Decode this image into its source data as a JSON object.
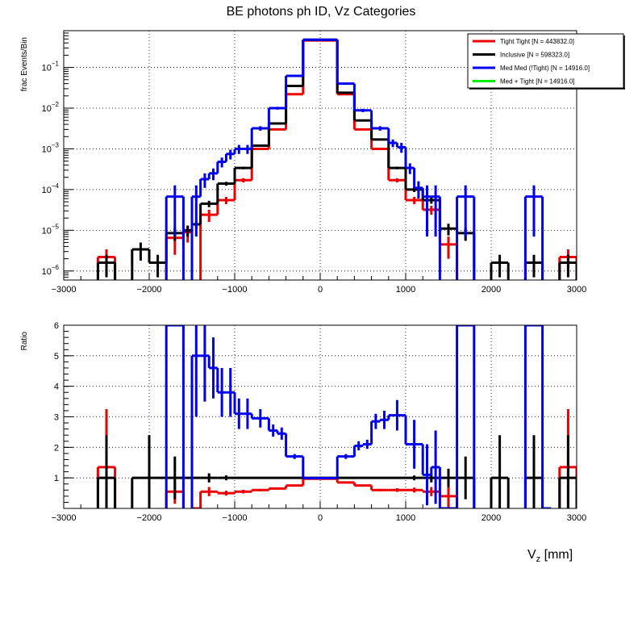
{
  "title": "BE photons ph ID, Vz Categories",
  "xlabel_main": "V",
  "xlabel_sub": "z",
  "xlabel_unit": " [mm]",
  "colors": {
    "tight_tight": "#ee0000",
    "inclusive": "#000000",
    "med_med": "#0000ee",
    "med_tight": "#00ee00"
  },
  "chart_data": [
    {
      "type": "line",
      "panel": "top",
      "ylabel": "frac Events/Bin",
      "yscale": "log",
      "xlim": [
        -3000,
        3000
      ],
      "ylim": [
        6e-07,
        0.8
      ],
      "yticks": [
        {
          "v": 1e-06,
          "label": "10^-6"
        },
        {
          "v": 1e-05,
          "label": "10^-5"
        },
        {
          "v": 0.0001,
          "label": "10^-4"
        },
        {
          "v": 0.001,
          "label": "10^-3"
        },
        {
          "v": 0.01,
          "label": "10^-2"
        },
        {
          "v": 0.1,
          "label": "10^-1"
        }
      ],
      "xticks": [
        -3000,
        -2000,
        -1000,
        0,
        1000,
        2000,
        3000
      ],
      "xtick_labels": [
        "−3000",
        "−2000",
        "−1000",
        "0",
        "1000",
        "2000",
        "3000"
      ],
      "legend": {
        "placement": "top-right",
        "entries": [
          {
            "label": "Tight Tight [N = 443832.0]",
            "color": "#ee0000"
          },
          {
            "label": "Inclusive [N = 598323.0]",
            "color": "#000000"
          },
          {
            "label": "Med Med (!Tight) [N = 14916.0]",
            "color": "#0000ee"
          },
          {
            "label": "Med + Tight [N = 14916.0]",
            "color": "#00ee00"
          }
        ]
      },
      "series": [
        {
          "name": "Tight Tight",
          "color": "#ee0000",
          "bins": [
            [
              -2600,
              -2400,
              2.2e-06,
              1.2e-06
            ],
            [
              -1800,
              -1600,
              6.5e-06,
              4e-06
            ],
            [
              -1600,
              -1500,
              9e-06,
              4e-06
            ],
            [
              -1400,
              -1200,
              2.4e-05,
              8e-06
            ],
            [
              -1200,
              -1000,
              5.5e-05,
              1.1e-05
            ],
            [
              -1000,
              -800,
              0.00017,
              2e-05
            ],
            [
              -800,
              -600,
              0.001,
              5e-05
            ],
            [
              -600,
              -400,
              0.003,
              0.0001
            ],
            [
              -400,
              -200,
              0.022,
              0.0003
            ],
            [
              -200,
              200,
              0.46,
              0.001
            ],
            [
              200,
              400,
              0.022,
              0.0003
            ],
            [
              400,
              600,
              0.003,
              0.0001
            ],
            [
              600,
              800,
              0.001,
              5e-05
            ],
            [
              800,
              1000,
              0.00017,
              2e-05
            ],
            [
              1000,
              1200,
              5.5e-05,
              1.1e-05
            ],
            [
              1200,
              1400,
              3.2e-05,
              8e-06
            ],
            [
              1400,
              1600,
              4.5e-06,
              2.5e-06
            ],
            [
              2800,
              3000,
              2.2e-06,
              1.2e-06
            ]
          ]
        },
        {
          "name": "Inclusive",
          "color": "#000000",
          "bins": [
            [
              -2600,
              -2400,
              1.6e-06,
              9e-07
            ],
            [
              -2200,
              -2000,
              3.4e-06,
              1.6e-06
            ],
            [
              -2000,
              -1800,
              1.6e-06,
              9e-07
            ],
            [
              -1800,
              -1600,
              8.5e-06,
              3e-06
            ],
            [
              -1600,
              -1500,
              1e-05,
              3e-06
            ],
            [
              -1500,
              -1400,
              1.4e-05,
              3e-06
            ],
            [
              -1400,
              -1200,
              4.5e-05,
              8e-06
            ],
            [
              -1200,
              -1000,
              0.00014,
              1.5e-05
            ],
            [
              -1000,
              -800,
              0.00034,
              2.5e-05
            ],
            [
              -800,
              -600,
              0.0012,
              6e-05
            ],
            [
              -600,
              -400,
              0.0042,
              0.00012
            ],
            [
              -400,
              -200,
              0.035,
              0.0003
            ],
            [
              -200,
              200,
              0.48,
              0.001
            ],
            [
              200,
              400,
              0.024,
              0.0003
            ],
            [
              400,
              600,
              0.005,
              0.00012
            ],
            [
              600,
              800,
              0.0017,
              6e-05
            ],
            [
              800,
              1000,
              0.00034,
              2.5e-05
            ],
            [
              1000,
              1200,
              0.0001,
              1.3e-05
            ],
            [
              1200,
              1400,
              5.5e-05,
              1e-05
            ],
            [
              1400,
              1600,
              1.1e-05,
              3.5e-06
            ],
            [
              1600,
              1800,
              8.5e-06,
              3e-06
            ],
            [
              2000,
              2200,
              1.6e-06,
              9e-07
            ],
            [
              2400,
              2600,
              1.6e-06,
              9e-07
            ],
            [
              2800,
              3000,
              1.6e-06,
              9e-07
            ]
          ]
        },
        {
          "name": "Med Med (!Tight)",
          "color": "#0000ee",
          "bins": [
            [
              -1800,
              -1600,
              6.7e-05,
              6e-05
            ],
            [
              -1500,
              -1400,
              6.7e-05,
              6e-05
            ],
            [
              -1400,
              -1300,
              0.00018,
              7e-05
            ],
            [
              -1300,
              -1200,
              0.00025,
              8e-05
            ],
            [
              -1200,
              -1100,
              0.00048,
              0.00013
            ],
            [
              -1100,
              -1000,
              0.00075,
              0.0002
            ],
            [
              -1000,
              -900,
              0.001,
              0.00025
            ],
            [
              -900,
              -800,
              0.001,
              0.00025
            ],
            [
              -800,
              -600,
              0.0032,
              0.0004
            ],
            [
              -600,
              -400,
              0.01,
              0.0008
            ],
            [
              -400,
              -200,
              0.062,
              0.002
            ],
            [
              -200,
              200,
              0.48,
              0.005
            ],
            [
              200,
              400,
              0.04,
              0.002
            ],
            [
              400,
              600,
              0.0088,
              0.0008
            ],
            [
              600,
              800,
              0.0032,
              0.0004
            ],
            [
              800,
              900,
              0.0014,
              0.0003
            ],
            [
              900,
              1000,
              0.0011,
              0.0003
            ],
            [
              1000,
              1100,
              0.00034,
              0.0001
            ],
            [
              1100,
              1200,
              0.00011,
              5e-05
            ],
            [
              1200,
              1300,
              6.7e-05,
              6e-05
            ],
            [
              1300,
              1400,
              6.7e-05,
              6e-05
            ],
            [
              1600,
              1800,
              6.7e-05,
              6e-05
            ],
            [
              2400,
              2600,
              6.7e-05,
              6e-05
            ]
          ]
        }
      ]
    },
    {
      "type": "line",
      "panel": "bottom",
      "ylabel": "Ratio",
      "xlim": [
        -3000,
        3000
      ],
      "ylim": [
        0,
        6
      ],
      "yticks": [
        1,
        2,
        3,
        4,
        5,
        6
      ],
      "xticks": [
        -3000,
        -2000,
        -1000,
        0,
        1000,
        2000,
        3000
      ],
      "xtick_labels": [
        "−3000",
        "−2000",
        "−1000",
        "0",
        "1000",
        "2000",
        "3000"
      ],
      "series": [
        {
          "name": "Tight Tight / Inclusive",
          "color": "#ee0000",
          "bins": [
            [
              -2600,
              -2400,
              1.35,
              1.9
            ],
            [
              -1800,
              -1600,
              0.55,
              0.4
            ],
            [
              -1500,
              -1400,
              0.0,
              0
            ],
            [
              -1400,
              -1200,
              0.55,
              0.15
            ],
            [
              -1200,
              -1000,
              0.5,
              0.08
            ],
            [
              -1000,
              -800,
              0.55,
              0.06
            ],
            [
              -800,
              -600,
              0.6,
              0.04
            ],
            [
              -600,
              -400,
              0.65,
              0.03
            ],
            [
              -400,
              -200,
              0.75,
              0.02
            ],
            [
              -200,
              200,
              0.97,
              0.01
            ],
            [
              200,
              400,
              0.85,
              0.02
            ],
            [
              400,
              600,
              0.75,
              0.03
            ],
            [
              600,
              800,
              0.6,
              0.04
            ],
            [
              800,
              1000,
              0.6,
              0.06
            ],
            [
              1000,
              1200,
              0.6,
              0.08
            ],
            [
              1200,
              1400,
              0.55,
              0.15
            ],
            [
              1400,
              1600,
              0.4,
              0.4
            ],
            [
              2800,
              3000,
              1.35,
              1.9
            ]
          ]
        },
        {
          "name": "Inclusive / Inclusive",
          "color": "#000000",
          "bins": [
            [
              -2600,
              -2400,
              1.0,
              1.4
            ],
            [
              -2200,
              -1800,
              1.0,
              1.4
            ],
            [
              -1800,
              -1600,
              1.0,
              0.7
            ],
            [
              -1600,
              -1400,
              1.0,
              0.3
            ],
            [
              -1400,
              -1200,
              1.0,
              0.15
            ],
            [
              -1200,
              -1000,
              1.0,
              0.08
            ],
            [
              -1000,
              1000,
              1.0,
              0.04
            ],
            [
              1000,
              1200,
              1.0,
              0.08
            ],
            [
              1200,
              1400,
              1.0,
              0.15
            ],
            [
              1400,
              1600,
              1.0,
              0.3
            ],
            [
              1600,
              1800,
              1.0,
              0.7
            ],
            [
              2000,
              2200,
              1.0,
              1.4
            ],
            [
              2400,
              2600,
              1.0,
              1.4
            ],
            [
              2800,
              3000,
              1.0,
              1.4
            ]
          ]
        },
        {
          "name": "Med Med (!Tight) / Inclusive",
          "color": "#0000ee",
          "bins": [
            [
              -1800,
              -1600,
              8.0,
              2
            ],
            [
              -1500,
              -1400,
              5.0,
              2
            ],
            [
              -1400,
              -1300,
              5.0,
              1.5
            ],
            [
              -1300,
              -1200,
              4.6,
              1.0
            ],
            [
              -1200,
              -1100,
              3.8,
              0.8
            ],
            [
              -1100,
              -1000,
              3.8,
              0.8
            ],
            [
              -1000,
              -900,
              3.1,
              0.5
            ],
            [
              -900,
              -800,
              3.1,
              0.5
            ],
            [
              -800,
              -600,
              2.95,
              0.3
            ],
            [
              -600,
              -500,
              2.55,
              0.2
            ],
            [
              -500,
              -400,
              2.45,
              0.2
            ],
            [
              -400,
              -200,
              1.7,
              0.08
            ],
            [
              -200,
              200,
              0.99,
              0.01
            ],
            [
              200,
              400,
              1.7,
              0.08
            ],
            [
              400,
              500,
              2.05,
              0.15
            ],
            [
              500,
              600,
              2.1,
              0.15
            ],
            [
              600,
              700,
              2.85,
              0.25
            ],
            [
              700,
              800,
              2.9,
              0.3
            ],
            [
              800,
              1000,
              3.05,
              0.5
            ],
            [
              1000,
              1200,
              2.1,
              0.8
            ],
            [
              1200,
              1300,
              1.1,
              1.0
            ],
            [
              1300,
              1400,
              1.35,
              1.2
            ],
            [
              1400,
              1600,
              0.0,
              0
            ],
            [
              1600,
              1800,
              8.0,
              2
            ],
            [
              2400,
              2600,
              8.0,
              2
            ],
            [
              2600,
              2700,
              0.0,
              0
            ]
          ]
        }
      ]
    }
  ]
}
